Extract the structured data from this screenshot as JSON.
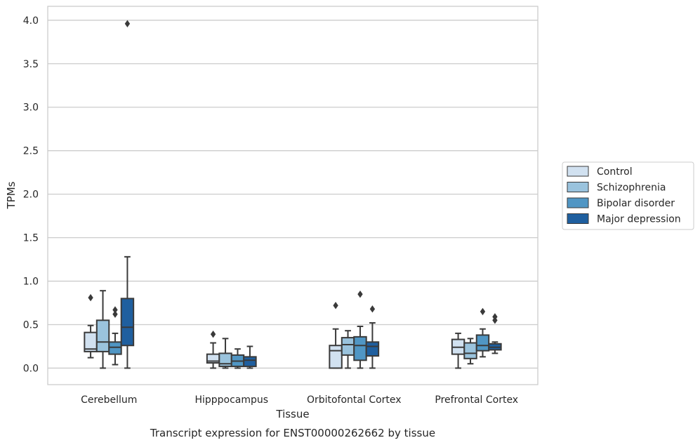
{
  "chart_data": {
    "type": "box",
    "xlabel": "Tissue",
    "ylabel": "TPMs",
    "caption": "Transcript expression for ENST00000262662 by tissue",
    "ylim": [
      -0.19,
      4.16
    ],
    "yticks": [
      "0.0",
      "0.5",
      "1.0",
      "1.5",
      "2.0",
      "2.5",
      "3.0",
      "3.5",
      "4.0"
    ],
    "grid": true,
    "legend_position": "right",
    "categories": [
      "Cerebellum",
      "Hipppocampus",
      "Orbitofontal Cortex",
      "Prefrontal Cortex"
    ],
    "series": [
      {
        "name": "Control",
        "color": "#d1e1f0",
        "boxes": [
          {
            "min": 0.12,
            "q1": 0.19,
            "median": 0.22,
            "q3": 0.41,
            "max": 0.49,
            "outliers": [
              0.81
            ]
          },
          {
            "min": 0.0,
            "q1": 0.06,
            "median": 0.08,
            "q3": 0.16,
            "max": 0.29,
            "outliers": [
              0.39
            ]
          },
          {
            "min": 0.0,
            "q1": 0.0,
            "median": 0.2,
            "q3": 0.26,
            "max": 0.45,
            "outliers": [
              0.72
            ]
          },
          {
            "min": 0.0,
            "q1": 0.16,
            "median": 0.24,
            "q3": 0.33,
            "max": 0.4,
            "outliers": []
          }
        ]
      },
      {
        "name": "Schizophrenia",
        "color": "#9ac3dd",
        "boxes": [
          {
            "min": 0.0,
            "q1": 0.19,
            "median": 0.3,
            "q3": 0.55,
            "max": 0.89,
            "outliers": []
          },
          {
            "min": 0.0,
            "q1": 0.02,
            "median": 0.05,
            "q3": 0.17,
            "max": 0.34,
            "outliers": []
          },
          {
            "min": 0.0,
            "q1": 0.15,
            "median": 0.27,
            "q3": 0.35,
            "max": 0.43,
            "outliers": []
          },
          {
            "min": 0.05,
            "q1": 0.11,
            "median": 0.17,
            "q3": 0.29,
            "max": 0.34,
            "outliers": []
          }
        ]
      },
      {
        "name": "Bipolar disorder",
        "color": "#5096c4",
        "boxes": [
          {
            "min": 0.04,
            "q1": 0.16,
            "median": 0.24,
            "q3": 0.3,
            "max": 0.4,
            "outliers": [
              0.62,
              0.67
            ]
          },
          {
            "min": 0.0,
            "q1": 0.02,
            "median": 0.08,
            "q3": 0.15,
            "max": 0.22,
            "outliers": []
          },
          {
            "min": 0.0,
            "q1": 0.09,
            "median": 0.26,
            "q3": 0.36,
            "max": 0.48,
            "outliers": [
              0.85
            ]
          },
          {
            "min": 0.13,
            "q1": 0.2,
            "median": 0.26,
            "q3": 0.38,
            "max": 0.45,
            "outliers": [
              0.65
            ]
          }
        ]
      },
      {
        "name": "Major depression",
        "color": "#1f5f9f",
        "boxes": [
          {
            "min": 0.0,
            "q1": 0.26,
            "median": 0.47,
            "q3": 0.8,
            "max": 1.28,
            "outliers": [
              3.96
            ]
          },
          {
            "min": 0.0,
            "q1": 0.02,
            "median": 0.09,
            "q3": 0.13,
            "max": 0.25,
            "outliers": []
          },
          {
            "min": 0.0,
            "q1": 0.14,
            "median": 0.25,
            "q3": 0.3,
            "max": 0.52,
            "outliers": [
              0.68
            ]
          },
          {
            "min": 0.17,
            "q1": 0.21,
            "median": 0.24,
            "q3": 0.28,
            "max": 0.3,
            "outliers": [
              0.55,
              0.59
            ]
          }
        ]
      }
    ]
  }
}
